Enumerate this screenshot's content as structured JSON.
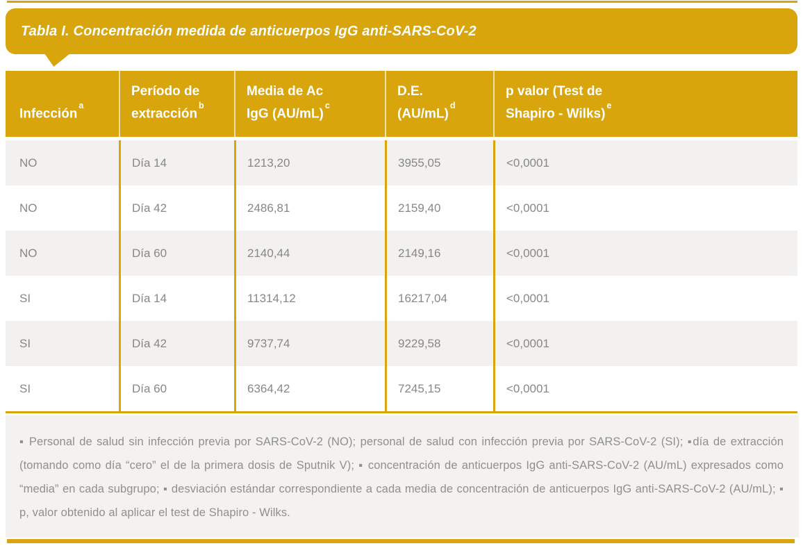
{
  "banner": {
    "title": "Tabla I. Concentración medida de anticuerpos IgG anti-SARS-CoV-2"
  },
  "table": {
    "columns": [
      {
        "label": "Infección",
        "sup": "a"
      },
      {
        "label": "Período de\nextracción",
        "sup": "b"
      },
      {
        "label": "Media de Ac\nIgG (AU/mL)",
        "sup": "c"
      },
      {
        "label": "D.E.\n(AU/mL)",
        "sup": "d"
      },
      {
        "label": "p valor (Test de\nShapiro - Wilks)",
        "sup": "e"
      }
    ],
    "rows": [
      [
        "NO",
        "Día 14",
        "1213,20",
        "3955,05",
        "<0,0001"
      ],
      [
        "NO",
        "Día 42",
        "2486,81",
        "2159,40",
        "<0,0001"
      ],
      [
        "NO",
        "Día 60",
        "2140,44",
        "2149,16",
        "<0,0001"
      ],
      [
        "SI",
        "Día 14",
        "11314,12",
        "16217,04",
        "<0,0001"
      ],
      [
        "SI",
        "Día 42",
        "9737,74",
        "9229,58",
        "<0,0001"
      ],
      [
        "SI",
        "Día 60",
        "6364,42",
        "7245,15",
        "<0,0001"
      ]
    ]
  },
  "footnotes": {
    "text": "▪ Personal de salud sin infección previa por SARS-CoV-2 (NO); personal de salud con infección previa por SARS-CoV-2 (SI); ▪día de extracción (tomando como día “cero” el de la primera dosis de Sputnik V); ▪ concentración de anticuerpos IgG anti-SARS-CoV-2 (AU/mL) expresados como “media” en cada subgrupo; ▪ desviación estándar correspondiente a cada media de concentración de anticuerpos IgG anti-SARS-CoV-2 (AU/mL); ▪ p, valor obtenido al aplicar el test de Shapiro - Wilks."
  },
  "colors": {
    "accent_gold": "#d9a50d",
    "row_alt_background": "#f2f1ef",
    "footnote_background": "#f3f2f0",
    "body_text_gray": "#878786"
  }
}
